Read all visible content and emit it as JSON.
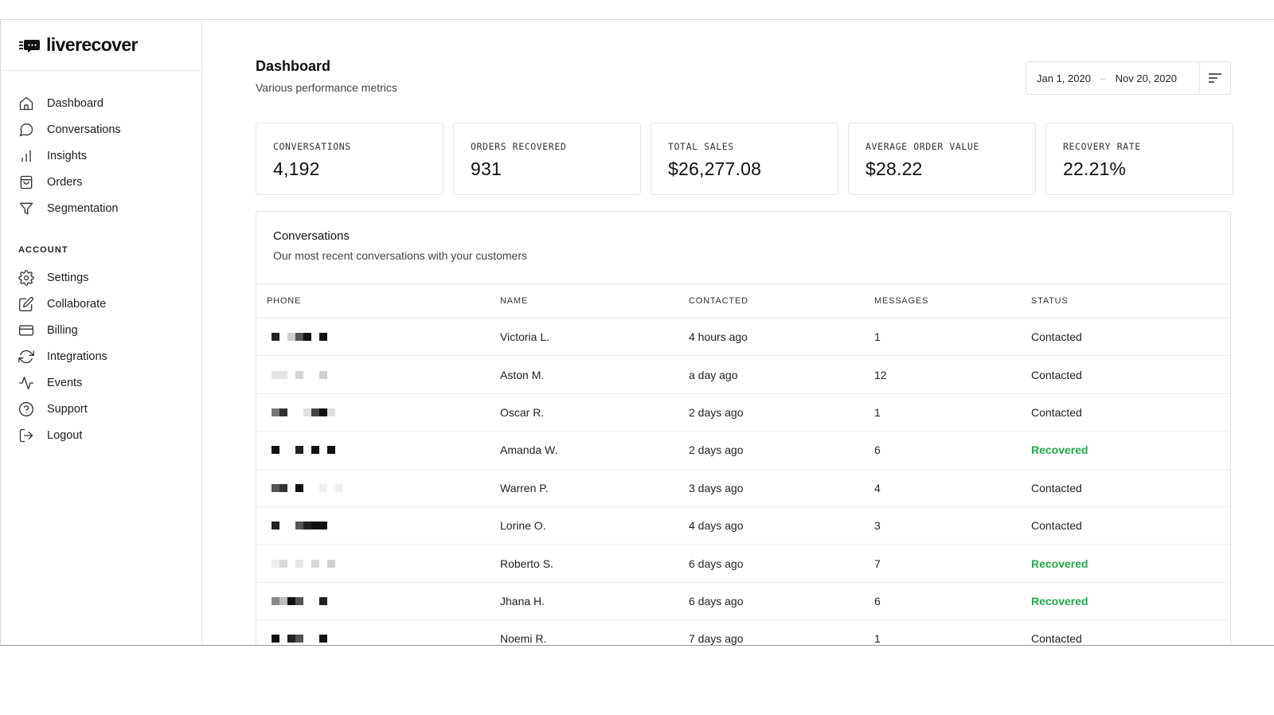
{
  "brand": {
    "name": "liverecover"
  },
  "sidebar": {
    "nav": [
      {
        "label": "Dashboard",
        "icon": "home-icon"
      },
      {
        "label": "Conversations",
        "icon": "chat-bubble-icon"
      },
      {
        "label": "Insights",
        "icon": "bar-chart-icon"
      },
      {
        "label": "Orders",
        "icon": "shopping-bag-icon"
      },
      {
        "label": "Segmentation",
        "icon": "filter-funnel-icon"
      }
    ],
    "account_label": "ACCOUNT",
    "account": [
      {
        "label": "Settings",
        "icon": "gear-icon"
      },
      {
        "label": "Collaborate",
        "icon": "edit-icon"
      },
      {
        "label": "Billing",
        "icon": "credit-card-icon"
      },
      {
        "label": "Integrations",
        "icon": "refresh-icon"
      },
      {
        "label": "Events",
        "icon": "activity-icon"
      },
      {
        "label": "Support",
        "icon": "help-circle-icon"
      },
      {
        "label": "Logout",
        "icon": "logout-icon"
      }
    ]
  },
  "header": {
    "title": "Dashboard",
    "subtitle": "Various performance metrics",
    "date_start": "Jan 1, 2020",
    "date_separator": "–",
    "date_end": "Nov 20, 2020"
  },
  "stats": [
    {
      "label": "CONVERSATIONS",
      "value": "4,192"
    },
    {
      "label": "ORDERS RECOVERED",
      "value": "931"
    },
    {
      "label": "TOTAL SALES",
      "value": "$26,277.08"
    },
    {
      "label": "AVERAGE ORDER VALUE",
      "value": "$28.22"
    },
    {
      "label": "RECOVERY RATE",
      "value": "22.21%"
    }
  ],
  "conversations": {
    "title": "Conversations",
    "subtitle": "Our most recent conversations with your customers",
    "columns": [
      "PHONE",
      "NAME",
      "CONTACTED",
      "MESSAGES",
      "STATUS"
    ],
    "rows": [
      {
        "name": "Victoria L.",
        "contacted": "4 hours ago",
        "messages": "1",
        "status": "Contacted"
      },
      {
        "name": "Aston M.",
        "contacted": "a day ago",
        "messages": "12",
        "status": "Contacted"
      },
      {
        "name": "Oscar R.",
        "contacted": "2 days ago",
        "messages": "1",
        "status": "Contacted"
      },
      {
        "name": "Amanda W.",
        "contacted": "2 days ago",
        "messages": "6",
        "status": "Recovered"
      },
      {
        "name": "Warren P.",
        "contacted": "3 days ago",
        "messages": "4",
        "status": "Contacted"
      },
      {
        "name": "Lorine O.",
        "contacted": "4 days ago",
        "messages": "3",
        "status": "Contacted"
      },
      {
        "name": "Roberto S.",
        "contacted": "6 days ago",
        "messages": "7",
        "status": "Recovered"
      },
      {
        "name": "Jhana H.",
        "contacted": "6 days ago",
        "messages": "6",
        "status": "Recovered"
      },
      {
        "name": "Noemi R.",
        "contacted": "7 days ago",
        "messages": "1",
        "status": "Contacted"
      }
    ]
  },
  "colors": {
    "recovered": "#1fab4a",
    "text": "#1a1a1a",
    "border": "#e3e3e3"
  }
}
